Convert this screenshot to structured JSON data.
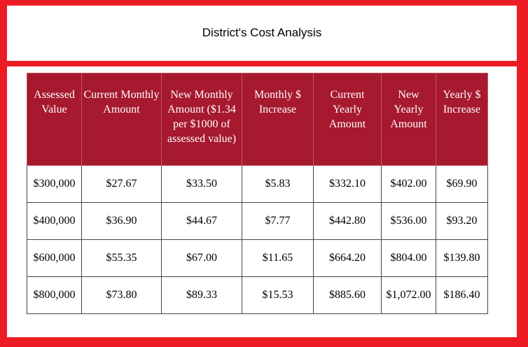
{
  "title": "District's Cost Analysis",
  "colors": {
    "frame": "#ed1c24",
    "header": "#a6192e"
  },
  "table": {
    "headers": [
      "Assessed Value",
      "Current Monthly Amount",
      "New Monthly Amount ($1.34 per $1000 of assessed value)",
      "Monthly $ Increase",
      "Current Yearly Amount",
      "New Yearly Amount",
      "Yearly $ Increase"
    ],
    "rows": [
      [
        "$300,000",
        "$27.67",
        "$33.50",
        "$5.83",
        "$332.10",
        "$402.00",
        "$69.90"
      ],
      [
        "$400,000",
        "$36.90",
        "$44.67",
        "$7.77",
        "$442.80",
        "$536.00",
        "$93.20"
      ],
      [
        "$600,000",
        "$55.35",
        "$67.00",
        "$11.65",
        "$664.20",
        "$804.00",
        "$139.80"
      ],
      [
        "$800,000",
        "$73.80",
        "$89.33",
        "$15.53",
        "$885.60",
        "$1,072.00",
        "$186.40"
      ]
    ]
  }
}
